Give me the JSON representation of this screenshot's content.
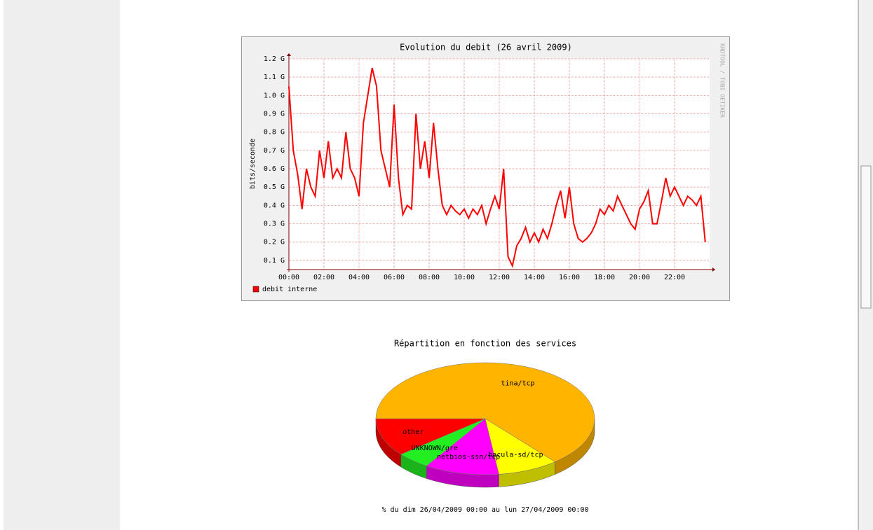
{
  "chart_data": [
    {
      "type": "line",
      "title": "Evolution du debit (26 avril 2009)",
      "ylabel": "bits/seconde",
      "watermark": "RRDTOOL / TOBI OETIKER",
      "xlim": [
        0,
        24
      ],
      "xticks": [
        {
          "value": 0,
          "label": "00:00"
        },
        {
          "value": 2,
          "label": "02:00"
        },
        {
          "value": 4,
          "label": "04:00"
        },
        {
          "value": 6,
          "label": "06:00"
        },
        {
          "value": 8,
          "label": "08:00"
        },
        {
          "value": 10,
          "label": "10:00"
        },
        {
          "value": 12,
          "label": "12:00"
        },
        {
          "value": 14,
          "label": "14:00"
        },
        {
          "value": 16,
          "label": "16:00"
        },
        {
          "value": 18,
          "label": "18:00"
        },
        {
          "value": 20,
          "label": "20:00"
        },
        {
          "value": 22,
          "label": "22:00"
        }
      ],
      "ylim": [
        0.05,
        1.2
      ],
      "yticks": [
        {
          "value": 0.1,
          "label": "0.1 G"
        },
        {
          "value": 0.2,
          "label": "0.2 G"
        },
        {
          "value": 0.3,
          "label": "0.3 G"
        },
        {
          "value": 0.4,
          "label": "0.4 G"
        },
        {
          "value": 0.5,
          "label": "0.5 G"
        },
        {
          "value": 0.6,
          "label": "0.6 G"
        },
        {
          "value": 0.7,
          "label": "0.7 G"
        },
        {
          "value": 0.8,
          "label": "0.8 G"
        },
        {
          "value": 0.9,
          "label": "0.9 G"
        },
        {
          "value": 1.0,
          "label": "1.0 G"
        },
        {
          "value": 1.1,
          "label": "1.1 G"
        },
        {
          "value": 1.2,
          "label": "1.2 G"
        }
      ],
      "grid": true,
      "x": [
        0,
        0.25,
        0.5,
        0.75,
        1,
        1.25,
        1.5,
        1.75,
        2,
        2.25,
        2.5,
        2.75,
        3,
        3.25,
        3.5,
        3.75,
        4,
        4.25,
        4.5,
        4.75,
        5,
        5.25,
        5.5,
        5.75,
        6,
        6.25,
        6.5,
        6.75,
        7,
        7.25,
        7.5,
        7.75,
        8,
        8.25,
        8.5,
        8.75,
        9,
        9.25,
        9.5,
        9.75,
        10,
        10.25,
        10.5,
        10.75,
        11,
        11.25,
        11.5,
        11.75,
        12,
        12.25,
        12.5,
        12.75,
        13,
        13.25,
        13.5,
        13.75,
        14,
        14.25,
        14.5,
        14.75,
        15,
        15.25,
        15.5,
        15.75,
        16,
        16.25,
        16.5,
        16.75,
        17,
        17.25,
        17.5,
        17.75,
        18,
        18.25,
        18.5,
        18.75,
        19,
        19.25,
        19.5,
        19.75,
        20,
        20.25,
        20.5,
        20.75,
        21,
        21.25,
        21.5,
        21.75,
        22,
        22.25,
        22.5,
        22.75,
        23,
        23.25,
        23.5,
        23.75
      ],
      "series": [
        {
          "name": "debit interne",
          "color": "#ff0000",
          "values": [
            1.05,
            0.7,
            0.57,
            0.38,
            0.6,
            0.5,
            0.45,
            0.7,
            0.55,
            0.75,
            0.55,
            0.6,
            0.55,
            0.8,
            0.6,
            0.55,
            0.45,
            0.85,
            1.0,
            1.15,
            1.05,
            0.7,
            0.6,
            0.5,
            0.95,
            0.55,
            0.35,
            0.4,
            0.38,
            0.9,
            0.6,
            0.75,
            0.55,
            0.85,
            0.6,
            0.4,
            0.35,
            0.4,
            0.37,
            0.35,
            0.38,
            0.33,
            0.38,
            0.35,
            0.4,
            0.3,
            0.38,
            0.45,
            0.38,
            0.6,
            0.12,
            0.07,
            0.18,
            0.22,
            0.28,
            0.2,
            0.25,
            0.2,
            0.27,
            0.22,
            0.3,
            0.4,
            0.48,
            0.33,
            0.5,
            0.3,
            0.22,
            0.2,
            0.22,
            0.25,
            0.3,
            0.38,
            0.35,
            0.4,
            0.37,
            0.45,
            0.4,
            0.35,
            0.3,
            0.27,
            0.38,
            0.42,
            0.48,
            0.3,
            0.3,
            0.42,
            0.55,
            0.45,
            0.5,
            0.45,
            0.4,
            0.45,
            0.43,
            0.4,
            0.45,
            0.2
          ]
        }
      ]
    },
    {
      "type": "pie",
      "title": "Répartition en fonction des services",
      "subtitle": "% du dim 26/04/2009 00:00 au lun 27/04/2009 00:00",
      "categories": [
        "other",
        "UNKNOWN/gre",
        "netbios-ssn/tcp",
        "bacula-sd/tcp",
        "tina/tcp"
      ],
      "values": [
        11,
        5,
        11,
        9,
        64
      ],
      "colors": [
        "#ff0000",
        "#22ee22",
        "#ff00ff",
        "#ffff00",
        "#ffb400"
      ]
    }
  ]
}
